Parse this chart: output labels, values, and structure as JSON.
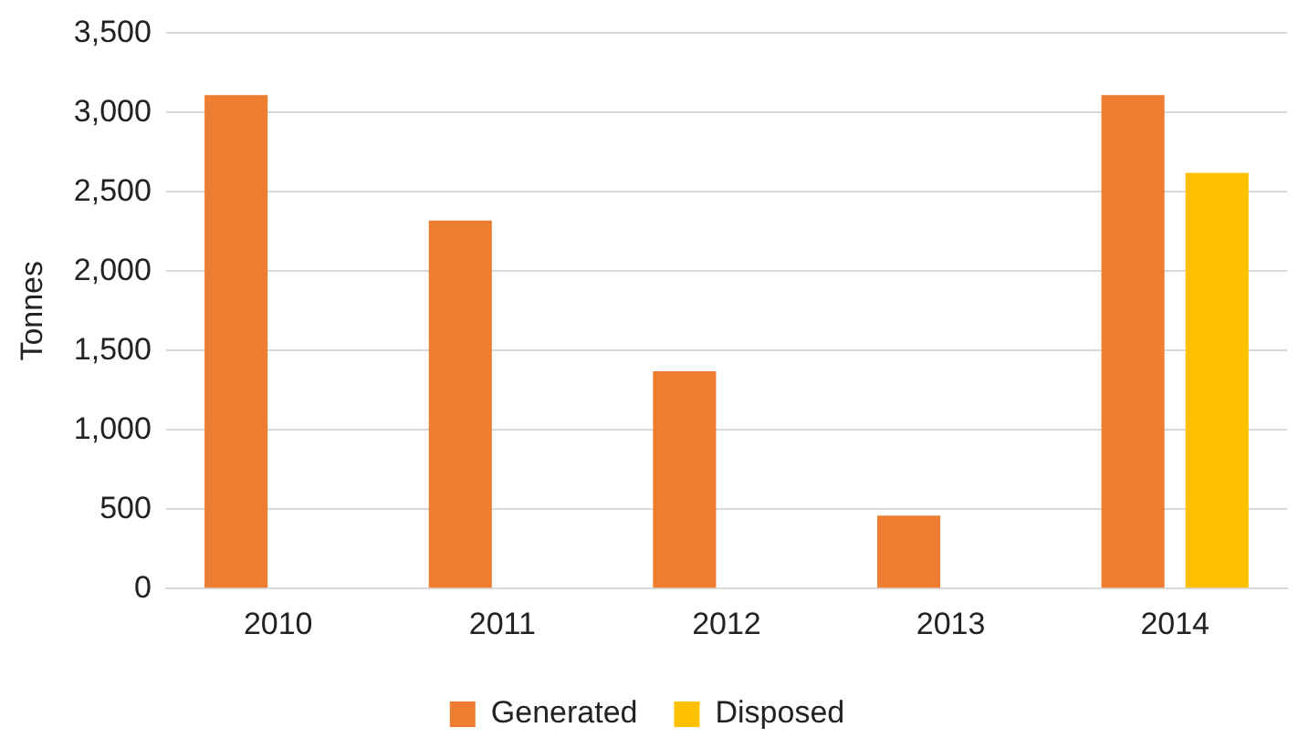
{
  "chart_data": {
    "type": "bar",
    "ylabel": "Tonnes",
    "categories": [
      "2010",
      "2011",
      "2012",
      "2013",
      "2014"
    ],
    "series": [
      {
        "name": "Generated",
        "color": "#ed7d31",
        "values": [
          3110,
          2320,
          1370,
          460,
          3110
        ]
      },
      {
        "name": "Disposed",
        "color": "#ffc000",
        "values": [
          null,
          null,
          null,
          null,
          2620
        ]
      }
    ],
    "ylim": [
      0,
      3500
    ],
    "yticks": [
      0,
      500,
      {
        "value": 1000,
        "label": "1,000"
      },
      {
        "value": 1500,
        "label": "1,500"
      },
      {
        "value": 2000,
        "label": "2,000"
      },
      {
        "value": 2500,
        "label": "2,500"
      },
      {
        "value": 3000,
        "label": "3,000"
      },
      {
        "value": 3500,
        "label": "3,500"
      }
    ],
    "grid": "y",
    "legend": "bottom"
  }
}
